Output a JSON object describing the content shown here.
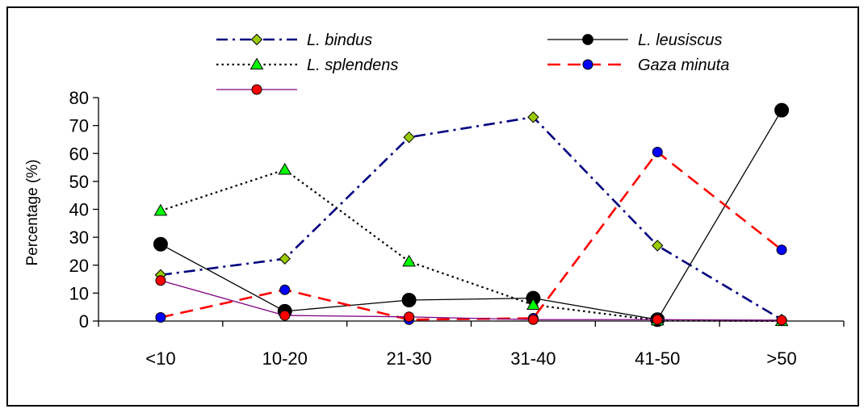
{
  "chart_data": {
    "type": "line",
    "title": "",
    "xlabel": "",
    "ylabel": "Percentage (%)",
    "ylim": [
      0,
      80
    ],
    "y_ticks": [
      "0",
      "10",
      "20",
      "30",
      "40",
      "50",
      "60",
      "70",
      "80"
    ],
    "categories": [
      "<10",
      "10-20",
      "21-30",
      "31-40",
      "41-50",
      ">50"
    ],
    "grid": false,
    "legend_position": "top",
    "series": [
      {
        "name": "L. bindus",
        "values": [
          16.5,
          22.3,
          65.8,
          73,
          27,
          0.5
        ],
        "color": "#000080",
        "marker": "diamond",
        "marker_color": "#99CC00",
        "dash": "dashdot"
      },
      {
        "name": "L. leusiscus",
        "values": [
          27.5,
          3.5,
          7.5,
          8.2,
          0.5,
          75.5
        ],
        "color": "#000000",
        "marker": "circle-large",
        "marker_color": "#000000",
        "dash": "solid"
      },
      {
        "name": "L. splendens",
        "values": [
          39.5,
          54.2,
          21.3,
          5.8,
          0.2,
          0
        ],
        "color": "#000000",
        "marker": "triangle",
        "marker_color": "#00FF00",
        "dash": "dotted"
      },
      {
        "name": "Gaza minuta",
        "values": [
          1.3,
          11.2,
          0.5,
          1,
          60.5,
          25.5
        ],
        "color": "#FF0000",
        "marker": "circle",
        "marker_color": "#0000FF",
        "dash": "longdash"
      },
      {
        "values": [
          14.5,
          2,
          1.5,
          0.5,
          0.5,
          0.3
        ],
        "color": "#800080",
        "marker": "circle",
        "marker_color": "#FF0000",
        "dash": "solid"
      }
    ]
  }
}
